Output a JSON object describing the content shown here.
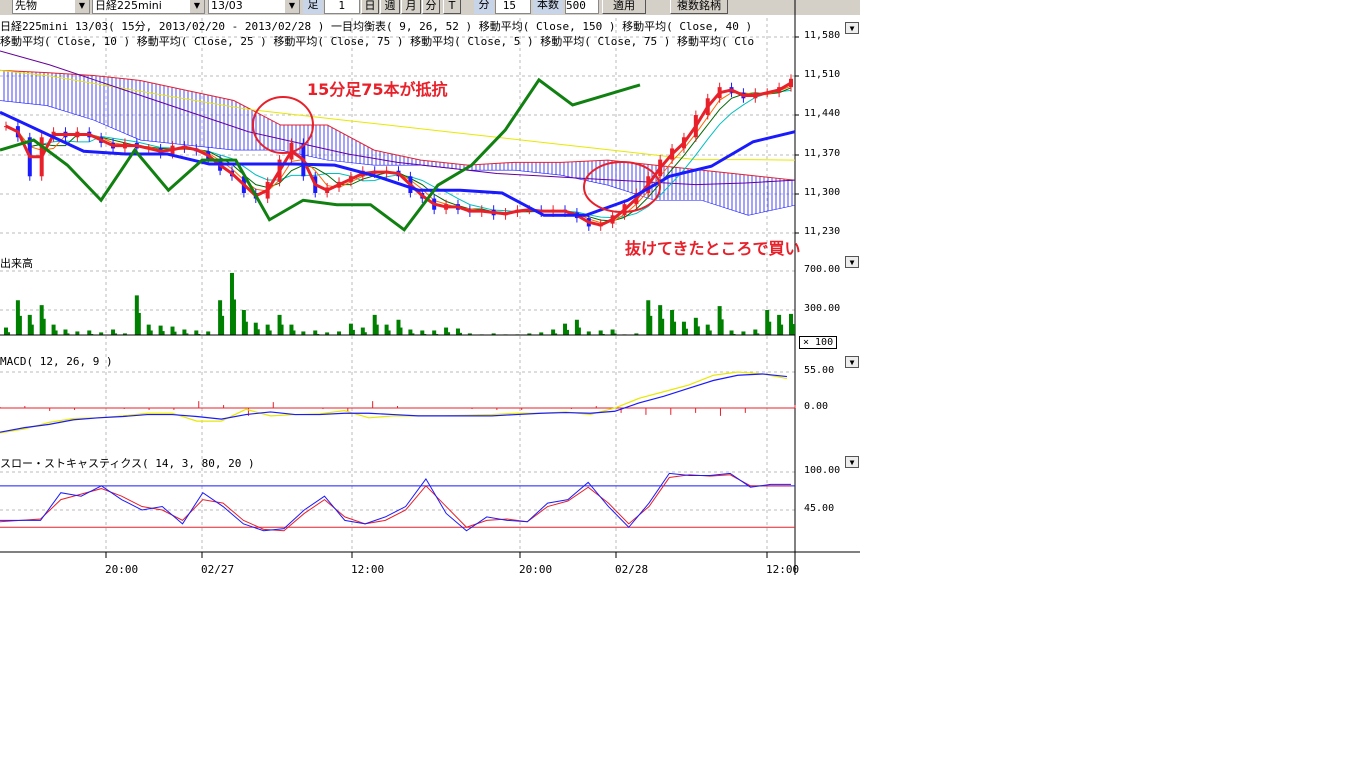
{
  "toolbar": {
    "market": "先物",
    "symbol": "日経225mini",
    "contract": "13/03",
    "bar_label": "足",
    "bar_value": "1",
    "day": "日",
    "week": "週",
    "month": "月",
    "minute": "分",
    "tick": "T",
    "interval_label": "分",
    "interval_value": "15",
    "count_label": "本数",
    "count_value": "500",
    "apply": "適用",
    "multi": "複数銘柄"
  },
  "header": {
    "line1": "日経225mini 13/03( 15分, 2013/02/20 - 2013/02/28 )   一目均衡表( 9, 26, 52 )   移動平均( Close, 150 )   移動平均( Close, 40 )",
    "line2": "移動平均( Close, 10 )   移動平均( Close, 25 )   移動平均( Close, 75 )   移動平均( Close, 5 )   移動平均( Close, 75 )   移動平均( Clo"
  },
  "panels": {
    "volume_title": "出来高",
    "volume_unit": "× 100",
    "macd_title": "MACD( 12, 26, 9 )",
    "stoch_title": "スロー・ストキャスティクス( 14, 3, 80, 20 )"
  },
  "annotations": {
    "resistance": "15分足75本が抵抗",
    "buy": "抜けてきたところで買い"
  },
  "colors": {
    "annotation": "#e8202a",
    "candle_up": "#e8202a",
    "candle_down": "#1a1aff",
    "volume": "#008000",
    "cloud": "#1a1aff"
  },
  "chart_data": {
    "type": "line",
    "x_ticks": [
      "20:00",
      "02/27",
      "12:00",
      "20:00",
      "02/28",
      "12:00"
    ],
    "price": {
      "y_ticks": [
        "11,580",
        "11,510",
        "11,440",
        "11,370",
        "11,300",
        "11,230"
      ],
      "ylim": [
        11200,
        11600
      ],
      "close": [
        11420,
        11400,
        11330,
        11400,
        11410,
        11400,
        11410,
        11400,
        11390,
        11380,
        11390,
        11380,
        11380,
        11370,
        11385,
        11380,
        11375,
        11360,
        11340,
        11330,
        11300,
        11290,
        11320,
        11360,
        11390,
        11330,
        11300,
        11310,
        11320,
        11330,
        11340,
        11335,
        11340,
        11330,
        11300,
        11290,
        11270,
        11280,
        11270,
        11265,
        11270,
        11260,
        11265,
        11270,
        11270,
        11265,
        11270,
        11265,
        11255,
        11240,
        11245,
        11260,
        11280,
        11300,
        11330,
        11360,
        11380,
        11400,
        11440,
        11470,
        11490,
        11480,
        11470,
        11480,
        11480,
        11490,
        11505
      ],
      "chikou": [
        11377,
        11395,
        11350,
        11287,
        11377,
        11305,
        11359,
        11359,
        11252,
        11287,
        11279,
        11279,
        11234,
        11314,
        11350,
        11413,
        11503,
        11458,
        11476,
        11494
      ],
      "kijun": [
        11445,
        11410,
        11375,
        11370,
        11370,
        11352,
        11352,
        11352,
        11350,
        11330,
        11305,
        11305,
        11300,
        11260,
        11260,
        11287,
        11330,
        11348,
        11392,
        11410
      ],
      "span_a": [
        11520,
        11516,
        11511,
        11502,
        11484,
        11466,
        11422,
        11422,
        11377,
        11359,
        11350,
        11355,
        11355,
        11359,
        11350,
        11341,
        11332,
        11323
      ],
      "span_b": [
        11466,
        11457,
        11431,
        11395,
        11386,
        11377,
        11377,
        11359,
        11350,
        11350,
        11341,
        11341,
        11332,
        11314,
        11287,
        11287,
        11260,
        11278
      ],
      "ma150": [
        11520,
        11510,
        11495,
        11480,
        11465,
        11450,
        11440,
        11430,
        11420,
        11410,
        11400,
        11390,
        11380,
        11370,
        11360,
        11360,
        11359
      ],
      "ma_purple": [
        11555,
        11530,
        11500,
        11470,
        11440,
        11410,
        11390,
        11370,
        11355,
        11345,
        11335,
        11330,
        11325,
        11320,
        11315,
        11318,
        11323
      ]
    },
    "volume": {
      "y_ticks": [
        "700.00",
        "300.00"
      ],
      "values": [
        120,
        400,
        250,
        350,
        150,
        100,
        80,
        90,
        70,
        100,
        60,
        450,
        150,
        140,
        130,
        100,
        90,
        80,
        400,
        680,
        300,
        170,
        150,
        250,
        150,
        80,
        90,
        70,
        80,
        160,
        120,
        250,
        150,
        200,
        100,
        90,
        90,
        120,
        110,
        60,
        50,
        60,
        50,
        50,
        60,
        70,
        100,
        160,
        200,
        80,
        90,
        100,
        50,
        60,
        400,
        350,
        300,
        180,
        220,
        150,
        340,
        90,
        80,
        100,
        300,
        250,
        260
      ]
    },
    "macd": {
      "y_ticks": [
        "55.00",
        "0.00"
      ],
      "macd": [
        -37,
        -30,
        -25,
        -18,
        -15,
        -13,
        -10,
        -10,
        -13,
        -17,
        -10,
        -6,
        -10,
        -10,
        -8,
        -8,
        -10,
        -12,
        -12,
        -12,
        -12,
        -10,
        -8,
        -7,
        -8,
        -5,
        8,
        18,
        30,
        42,
        50,
        52,
        48
      ],
      "signal": [
        -38,
        -32,
        -22,
        -16,
        -15,
        -12,
        -8,
        -8,
        -20,
        -20,
        -2,
        -12,
        -10,
        -9,
        -4,
        -15,
        -12,
        -12,
        -12,
        -11,
        -10,
        -8,
        -8,
        -6,
        -10,
        0,
        15,
        25,
        35,
        50,
        55,
        52,
        45
      ]
    },
    "stoch": {
      "y_ticks": [
        "100.00",
        "45.00"
      ],
      "upper": 80,
      "lower": 20,
      "k": [
        30,
        30,
        30,
        70,
        65,
        80,
        60,
        45,
        50,
        25,
        70,
        50,
        25,
        15,
        18,
        45,
        65,
        30,
        25,
        35,
        50,
        90,
        40,
        15,
        35,
        30,
        28,
        55,
        60,
        85,
        50,
        20,
        55,
        98,
        95,
        95,
        98,
        78,
        82,
        82
      ],
      "d": [
        28,
        30,
        32,
        60,
        68,
        76,
        65,
        50,
        45,
        30,
        60,
        55,
        30,
        17,
        15,
        40,
        60,
        35,
        25,
        30,
        45,
        80,
        50,
        20,
        30,
        32,
        28,
        50,
        58,
        78,
        55,
        25,
        50,
        92,
        96,
        94,
        96,
        80,
        80,
        80
      ]
    }
  }
}
